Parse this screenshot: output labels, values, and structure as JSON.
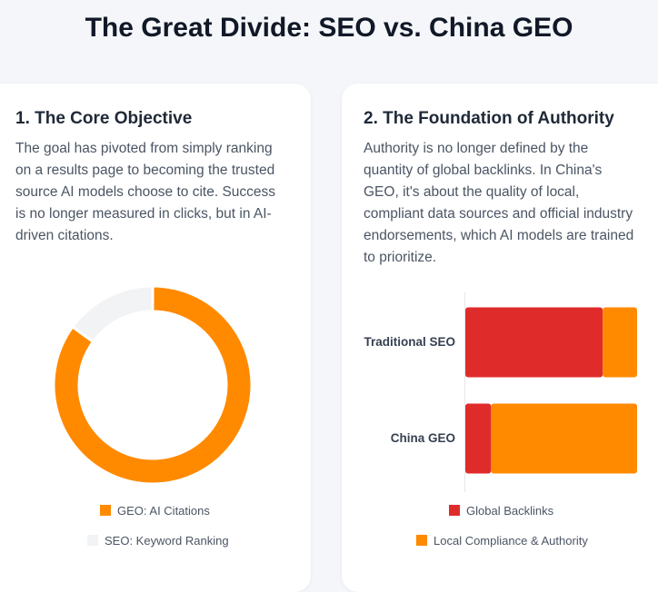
{
  "page": {
    "title": "The Great Divide: SEO vs. China GEO"
  },
  "cards": [
    {
      "title": "1. The Core Objective",
      "body": "The goal has pivoted from simply ranking on a results page to becoming the trusted source AI models choose to cite. Success is no longer measured in clicks, but in AI-driven citations."
    },
    {
      "title": "2. The Foundation of Authority",
      "body": "Authority is no longer defined by the quantity of global backlinks. In China's GEO, it's about the quality of local, compliant data sources and official industry endorsements, which AI models are trained to prioritize."
    }
  ],
  "chart_data": [
    {
      "type": "pie",
      "variant": "doughnut",
      "labels": [
        "GEO: AI Citations",
        "SEO: Keyword Ranking"
      ],
      "values": [
        85,
        15
      ],
      "colors": [
        "#ff8a00",
        "#f1f3f5"
      ],
      "legend": "bottom"
    },
    {
      "type": "bar",
      "orientation": "horizontal",
      "stacked": true,
      "categories": [
        "Traditional SEO",
        "China GEO"
      ],
      "series": [
        {
          "name": "Global Backlinks",
          "values": [
            80,
            15
          ],
          "color": "#e02b2b"
        },
        {
          "name": "Local Compliance & Authority",
          "values": [
            20,
            85
          ],
          "color": "#ff8a00"
        }
      ],
      "xlim": [
        0,
        100
      ],
      "legend": "bottom"
    }
  ]
}
